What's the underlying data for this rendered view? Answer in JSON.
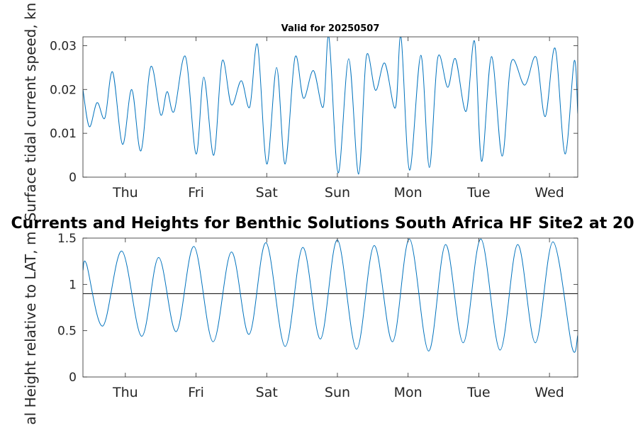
{
  "chart_data": [
    {
      "type": "line",
      "title": "Valid for 20250507",
      "ylabel": "Surface tidal current speed, kn",
      "xlabel": "",
      "xlim": [
        0,
        7
      ],
      "ylim": [
        0,
        0.032
      ],
      "yticks": [
        "0",
        "0.01",
        "0.02",
        "0.03"
      ],
      "ytick_values": [
        0,
        0.01,
        0.02,
        0.03
      ],
      "xtick_labels": [
        "Thu",
        "Fri",
        "Sat",
        "Sun",
        "Mon",
        "Tue",
        "Wed"
      ],
      "xtick_positions": [
        0.6,
        1.6,
        2.6,
        3.6,
        4.6,
        5.6,
        6.6
      ],
      "grid": false,
      "line_color": "#0072bd",
      "series": [
        {
          "x": [
            0.0,
            0.09,
            0.2,
            0.31,
            0.42,
            0.56,
            0.69,
            0.82,
            0.96,
            1.1,
            1.19,
            1.29,
            1.45,
            1.6,
            1.71,
            1.85,
            1.97,
            2.1,
            2.24,
            2.36,
            2.47,
            2.6,
            2.74,
            2.86,
            3.0,
            3.12,
            3.26,
            3.4,
            3.48,
            3.61,
            3.76,
            3.9,
            4.01,
            4.14,
            4.27,
            4.42,
            4.5,
            4.62,
            4.78,
            4.9,
            5.02,
            5.16,
            5.27,
            5.42,
            5.54,
            5.64,
            5.78,
            5.93,
            6.06,
            6.25,
            6.41,
            6.54,
            6.68,
            6.82,
            6.95,
            7.0
          ],
          "y": [
            0.02,
            0.0115,
            0.017,
            0.0135,
            0.024,
            0.0075,
            0.02,
            0.006,
            0.0252,
            0.0142,
            0.0195,
            0.015,
            0.0275,
            0.0053,
            0.0228,
            0.005,
            0.0265,
            0.0165,
            0.022,
            0.016,
            0.0302,
            0.003,
            0.025,
            0.003,
            0.0273,
            0.018,
            0.0243,
            0.016,
            0.032,
            0.001,
            0.027,
            0.0007,
            0.0276,
            0.0198,
            0.026,
            0.0158,
            0.032,
            0.0016,
            0.0278,
            0.0022,
            0.0273,
            0.0205,
            0.027,
            0.015,
            0.031,
            0.0036,
            0.0275,
            0.0048,
            0.0263,
            0.021,
            0.0274,
            0.0138,
            0.0294,
            0.0053,
            0.0265,
            0.0145
          ]
        }
      ]
    },
    {
      "type": "line",
      "title": "Currents and Heights for Benthic Solutions South Africa HF Site2 at 20",
      "ylabel": "Tidal Height relative to LAT, m",
      "xlabel": "",
      "xlim": [
        0,
        7
      ],
      "ylim": [
        0,
        1.5
      ],
      "yticks": [
        "0",
        "0.5",
        "1",
        "1.5"
      ],
      "ytick_values": [
        0,
        0.5,
        1,
        1.5
      ],
      "xtick_labels": [
        "Thu",
        "Fri",
        "Sat",
        "Sun",
        "Mon",
        "Tue",
        "Wed"
      ],
      "xtick_positions": [
        0.6,
        1.6,
        2.6,
        3.6,
        4.6,
        5.6,
        6.6
      ],
      "grid": false,
      "line_color": "#0072bd",
      "reference_line": {
        "y": 0.9,
        "color": "#000000"
      },
      "series": [
        {
          "x": [
            0.0,
            0.05,
            0.28,
            0.55,
            0.83,
            1.07,
            1.32,
            1.57,
            1.84,
            2.1,
            2.35,
            2.59,
            2.86,
            3.11,
            3.36,
            3.6,
            3.87,
            4.12,
            4.38,
            4.62,
            4.89,
            5.13,
            5.38,
            5.63,
            5.9,
            6.15,
            6.4,
            6.65,
            6.92,
            7.0
          ],
          "y": [
            1.15,
            1.22,
            0.55,
            1.36,
            0.44,
            1.29,
            0.49,
            1.41,
            0.38,
            1.35,
            0.46,
            1.45,
            0.33,
            1.4,
            0.41,
            1.48,
            0.3,
            1.42,
            0.38,
            1.49,
            0.28,
            1.43,
            0.37,
            1.49,
            0.29,
            1.43,
            0.37,
            1.46,
            0.32,
            0.45
          ]
        }
      ]
    }
  ]
}
